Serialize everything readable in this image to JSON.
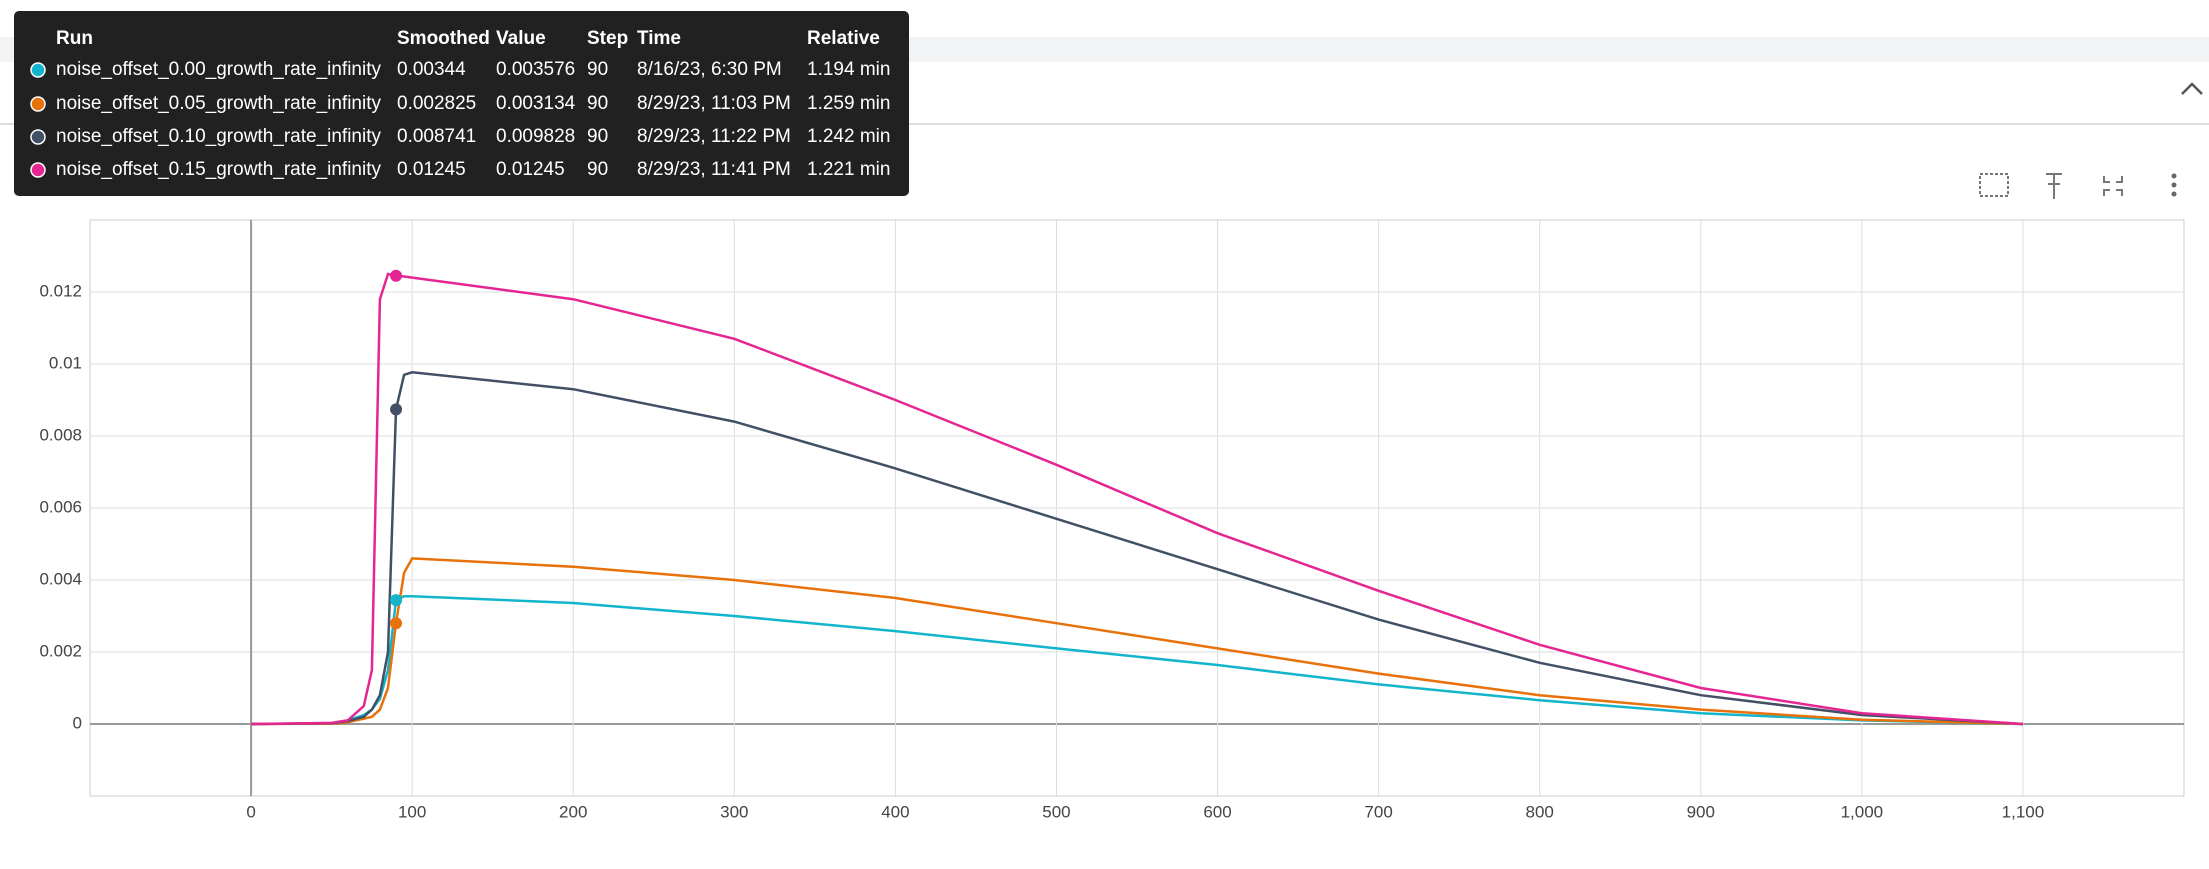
{
  "chart_data": {
    "type": "line",
    "x": [
      0,
      50,
      60,
      70,
      75,
      80,
      85,
      90,
      95,
      100,
      200,
      300,
      400,
      500,
      600,
      700,
      800,
      900,
      1000,
      1100
    ],
    "series": [
      {
        "name": "noise_offset_0.00_growth_rate_infinity",
        "color": "#12b5cb",
        "values": [
          0,
          2e-05,
          0.0001,
          0.00025,
          0.0004,
          0.0007,
          0.0015,
          0.00344,
          0.00355,
          0.00355,
          0.00336,
          0.003,
          0.00258,
          0.0021,
          0.00164,
          0.0011,
          0.00066,
          0.0003,
          0.0001,
          0
        ]
      },
      {
        "name": "noise_offset_0.05_growth_rate_infinity",
        "color": "#e8710a",
        "values": [
          0,
          1e-05,
          5e-05,
          0.00015,
          0.0002,
          0.0004,
          0.001,
          0.0028,
          0.0042,
          0.0046,
          0.00437,
          0.004,
          0.0035,
          0.0028,
          0.0021,
          0.0014,
          0.0008,
          0.0004,
          0.00012,
          0
        ]
      },
      {
        "name": "noise_offset_0.10_growth_rate_infinity",
        "color": "#425066",
        "values": [
          0,
          2e-05,
          8e-05,
          0.0002,
          0.0004,
          0.0008,
          0.002,
          0.00874,
          0.0097,
          0.00977,
          0.0093,
          0.0084,
          0.0071,
          0.0057,
          0.0043,
          0.0029,
          0.0017,
          0.0008,
          0.00025,
          0
        ]
      },
      {
        "name": "noise_offset_0.15_growth_rate_infinity",
        "color": "#e52592",
        "values": [
          0,
          3e-05,
          0.0001,
          0.0005,
          0.0015,
          0.0118,
          0.0125,
          0.01245,
          0.01243,
          0.0124,
          0.0118,
          0.0107,
          0.009,
          0.0072,
          0.0053,
          0.0037,
          0.0022,
          0.001,
          0.0003,
          0
        ]
      }
    ],
    "xlim": [
      -100,
      1200
    ],
    "ylim": [
      -0.002,
      0.014
    ],
    "xticks": [
      0,
      100,
      200,
      300,
      400,
      500,
      600,
      700,
      800,
      900,
      {
        "value": 1000,
        "label": "1,000"
      },
      {
        "value": 1100,
        "label": "1,100"
      }
    ],
    "yticks": [
      0,
      0.002,
      0.004,
      0.006,
      0.008,
      0.01,
      0.012
    ],
    "grid": true,
    "marker_index": 7
  },
  "tooltip": {
    "columns": [
      "Run",
      "Smoothed",
      "Value",
      "Step",
      "Time",
      "Relative"
    ],
    "rows": [
      [
        "0.00344",
        "0.003576",
        "90",
        "8/16/23, 6:30 PM",
        "1.194 min"
      ],
      [
        "0.002825",
        "0.003134",
        "90",
        "8/29/23, 11:03 PM",
        "1.259 min"
      ],
      [
        "0.008741",
        "0.009828",
        "90",
        "8/29/23, 11:22 PM",
        "1.242 min"
      ],
      [
        "0.01245",
        "0.01245",
        "90",
        "8/29/23, 11:41 PM",
        "1.221 min"
      ]
    ]
  }
}
